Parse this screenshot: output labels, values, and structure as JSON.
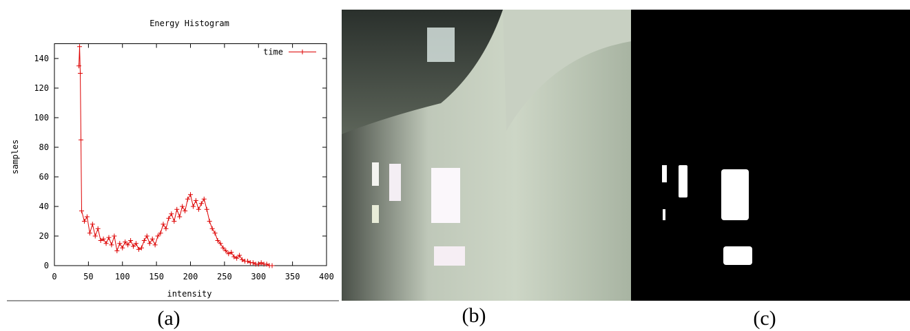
{
  "chart_data": {
    "type": "line",
    "title": "Energy Histogram",
    "x_label": "intensity",
    "y_label": "samples",
    "xlim": [
      0,
      400
    ],
    "xticks": [
      0,
      50,
      100,
      150,
      200,
      250,
      300,
      350,
      400
    ],
    "ylim": [
      0,
      150
    ],
    "yticks": [
      0,
      20,
      40,
      60,
      80,
      100,
      120,
      140
    ],
    "grid": false,
    "legend": "upper right",
    "x": [
      36,
      37,
      38,
      39,
      40,
      44,
      48,
      52,
      56,
      60,
      64,
      68,
      72,
      76,
      80,
      84,
      88,
      92,
      96,
      100,
      104,
      108,
      112,
      116,
      120,
      124,
      128,
      132,
      136,
      140,
      144,
      148,
      152,
      156,
      160,
      164,
      168,
      172,
      176,
      180,
      184,
      188,
      192,
      196,
      200,
      204,
      208,
      212,
      216,
      220,
      224,
      228,
      232,
      236,
      240,
      244,
      248,
      252,
      256,
      260,
      264,
      268,
      272,
      276,
      280,
      284,
      288,
      292,
      296,
      300,
      304,
      308,
      312,
      316,
      320
    ],
    "series": [
      {
        "name": "time",
        "color": "#dd0000",
        "values": [
          135,
          148,
          130,
          85,
          37,
          30,
          33,
          22,
          28,
          20,
          25,
          17,
          18,
          15,
          19,
          14,
          20,
          10,
          15,
          12,
          16,
          14,
          17,
          13,
          15,
          11,
          12,
          17,
          20,
          15,
          18,
          14,
          20,
          22,
          28,
          25,
          32,
          35,
          30,
          38,
          33,
          40,
          37,
          45,
          48,
          40,
          44,
          38,
          42,
          45,
          38,
          30,
          25,
          22,
          17,
          15,
          12,
          10,
          8,
          9,
          6,
          5,
          7,
          4,
          3,
          3,
          2,
          2,
          1,
          1,
          2,
          1,
          1,
          0,
          0
        ]
      }
    ]
  },
  "captions": [
    "(a)",
    "(b)",
    "(c)"
  ]
}
